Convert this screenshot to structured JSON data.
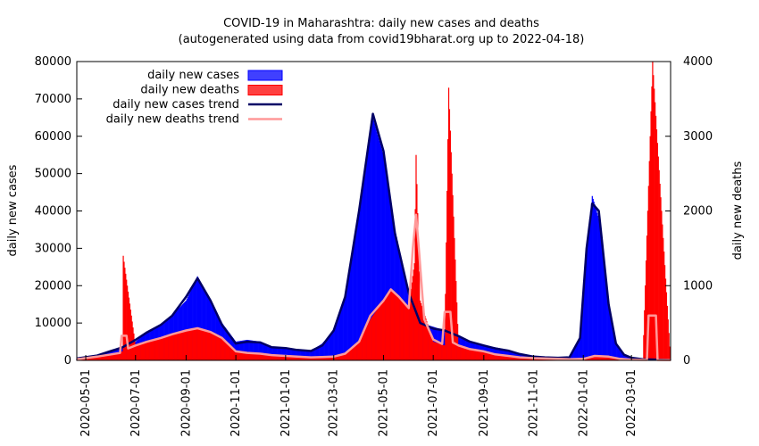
{
  "chart_data": {
    "type": "bar",
    "title": "COVID-19 in Maharashtra: daily new cases and deaths",
    "subtitle": "(autogenerated using data from covid19bharat.org up to 2022-04-18)",
    "ylabel": "daily new cases",
    "y2label": "daily new deaths",
    "xlim": [
      "2020-04-20",
      "2022-04-18"
    ],
    "ylim": [
      0,
      80000
    ],
    "y2lim": [
      0,
      4000
    ],
    "x_ticks": [
      "2020-05-01",
      "2020-07-01",
      "2020-09-01",
      "2020-11-01",
      "2021-01-01",
      "2021-03-01",
      "2021-05-01",
      "2021-07-01",
      "2021-09-01",
      "2021-11-01",
      "2022-01-01",
      "2022-03-01"
    ],
    "y_ticks": [
      0,
      10000,
      20000,
      30000,
      40000,
      50000,
      60000,
      70000,
      80000
    ],
    "y2_ticks": [
      0,
      1000,
      2000,
      3000,
      4000
    ],
    "legend_position": "top-left",
    "legend": [
      {
        "label": "daily new cases",
        "kind": "box",
        "color": "#0000ff"
      },
      {
        "label": "daily new deaths",
        "kind": "box",
        "color": "#ff0000"
      },
      {
        "label": "daily new cases trend",
        "kind": "line",
        "color": "#000066"
      },
      {
        "label": "daily new deaths trend",
        "kind": "line",
        "color": "#ff9999"
      }
    ],
    "series": [
      {
        "name": "daily new cases",
        "axis": "left",
        "color": "#0000ff",
        "points": [
          [
            "2020-04-20",
            400
          ],
          [
            "2020-05-15",
            1200
          ],
          [
            "2020-06-01",
            2500
          ],
          [
            "2020-06-15",
            3200
          ],
          [
            "2020-07-01",
            5000
          ],
          [
            "2020-07-15",
            7500
          ],
          [
            "2020-08-01",
            9500
          ],
          [
            "2020-08-15",
            12000
          ],
          [
            "2020-09-01",
            16000
          ],
          [
            "2020-09-15",
            22500
          ],
          [
            "2020-10-01",
            16000
          ],
          [
            "2020-10-15",
            10000
          ],
          [
            "2020-11-01",
            5000
          ],
          [
            "2020-11-15",
            5500
          ],
          [
            "2020-12-01",
            5000
          ],
          [
            "2020-12-15",
            3500
          ],
          [
            "2021-01-01",
            3500
          ],
          [
            "2021-01-15",
            2800
          ],
          [
            "2021-02-01",
            2500
          ],
          [
            "2021-02-15",
            4500
          ],
          [
            "2021-03-01",
            8000
          ],
          [
            "2021-03-15",
            17000
          ],
          [
            "2021-04-01",
            40000
          ],
          [
            "2021-04-18",
            65000
          ],
          [
            "2021-05-01",
            55000
          ],
          [
            "2021-05-15",
            35000
          ],
          [
            "2021-06-01",
            18000
          ],
          [
            "2021-06-15",
            10000
          ],
          [
            "2021-07-01",
            9000
          ],
          [
            "2021-07-15",
            8000
          ],
          [
            "2021-08-01",
            6500
          ],
          [
            "2021-08-15",
            5000
          ],
          [
            "2021-09-01",
            4000
          ],
          [
            "2021-09-15",
            3500
          ],
          [
            "2021-10-01",
            2800
          ],
          [
            "2021-10-15",
            1800
          ],
          [
            "2021-11-01",
            1100
          ],
          [
            "2021-11-15",
            800
          ],
          [
            "2021-12-01",
            700
          ],
          [
            "2021-12-15",
            800
          ],
          [
            "2021-12-28",
            6000
          ],
          [
            "2022-01-05",
            30000
          ],
          [
            "2022-01-12",
            44000
          ],
          [
            "2022-01-20",
            38000
          ],
          [
            "2022-02-01",
            15000
          ],
          [
            "2022-02-10",
            4500
          ],
          [
            "2022-02-20",
            1500
          ],
          [
            "2022-03-01",
            700
          ],
          [
            "2022-03-15",
            300
          ],
          [
            "2022-04-18",
            100
          ]
        ]
      },
      {
        "name": "daily new deaths",
        "axis": "right",
        "color": "#ff0000",
        "points": [
          [
            "2020-04-20",
            10
          ],
          [
            "2020-05-15",
            50
          ],
          [
            "2020-06-01",
            80
          ],
          [
            "2020-06-15",
            120
          ],
          [
            "2020-06-16",
            1400
          ],
          [
            "2020-07-01",
            200
          ],
          [
            "2020-07-15",
            250
          ],
          [
            "2020-08-01",
            300
          ],
          [
            "2020-08-15",
            350
          ],
          [
            "2020-09-01",
            400
          ],
          [
            "2020-09-15",
            440
          ],
          [
            "2020-10-01",
            380
          ],
          [
            "2020-10-15",
            300
          ],
          [
            "2020-11-01",
            130
          ],
          [
            "2020-11-15",
            100
          ],
          [
            "2020-12-01",
            90
          ],
          [
            "2020-12-15",
            70
          ],
          [
            "2021-01-01",
            60
          ],
          [
            "2021-01-15",
            50
          ],
          [
            "2021-02-01",
            40
          ],
          [
            "2021-02-15",
            45
          ],
          [
            "2021-03-01",
            50
          ],
          [
            "2021-03-15",
            90
          ],
          [
            "2021-04-01",
            250
          ],
          [
            "2021-04-15",
            550
          ],
          [
            "2021-05-01",
            800
          ],
          [
            "2021-05-10",
            950
          ],
          [
            "2021-05-20",
            850
          ],
          [
            "2021-06-01",
            700
          ],
          [
            "2021-06-08",
            1300
          ],
          [
            "2021-06-10",
            2750
          ],
          [
            "2021-06-15",
            800
          ],
          [
            "2021-07-01",
            250
          ],
          [
            "2021-07-15",
            200
          ],
          [
            "2021-07-20",
            3650
          ],
          [
            "2021-08-01",
            200
          ],
          [
            "2021-08-15",
            150
          ],
          [
            "2021-09-01",
            120
          ],
          [
            "2021-09-15",
            80
          ],
          [
            "2021-10-01",
            60
          ],
          [
            "2021-10-15",
            40
          ],
          [
            "2021-11-01",
            30
          ],
          [
            "2021-11-15",
            25
          ],
          [
            "2021-12-01",
            20
          ],
          [
            "2021-12-15",
            15
          ],
          [
            "2022-01-01",
            20
          ],
          [
            "2022-01-15",
            60
          ],
          [
            "2022-02-01",
            50
          ],
          [
            "2022-02-15",
            20
          ],
          [
            "2022-03-01",
            10
          ],
          [
            "2022-03-15",
            5
          ],
          [
            "2022-03-27",
            4000
          ],
          [
            "2022-04-18",
            3
          ]
        ]
      },
      {
        "name": "daily new cases trend",
        "axis": "left",
        "color": "#000066",
        "points": [
          [
            "2020-04-20",
            500
          ],
          [
            "2020-05-15",
            1300
          ],
          [
            "2020-06-01",
            2500
          ],
          [
            "2020-06-15",
            3500
          ],
          [
            "2020-07-01",
            5500
          ],
          [
            "2020-07-15",
            7500
          ],
          [
            "2020-08-01",
            9500
          ],
          [
            "2020-08-15",
            12000
          ],
          [
            "2020-09-01",
            17000
          ],
          [
            "2020-09-15",
            22000
          ],
          [
            "2020-10-01",
            16000
          ],
          [
            "2020-10-15",
            9500
          ],
          [
            "2020-11-01",
            4500
          ],
          [
            "2020-11-15",
            5000
          ],
          [
            "2020-12-01",
            4800
          ],
          [
            "2020-12-15",
            3500
          ],
          [
            "2021-01-01",
            3300
          ],
          [
            "2021-01-15",
            2800
          ],
          [
            "2021-02-01",
            2500
          ],
          [
            "2021-02-15",
            4000
          ],
          [
            "2021-03-01",
            8000
          ],
          [
            "2021-03-15",
            17000
          ],
          [
            "2021-04-01",
            40000
          ],
          [
            "2021-04-18",
            66000
          ],
          [
            "2021-05-01",
            56000
          ],
          [
            "2021-05-15",
            34000
          ],
          [
            "2021-06-01",
            18000
          ],
          [
            "2021-06-15",
            10000
          ],
          [
            "2021-07-01",
            8500
          ],
          [
            "2021-07-15",
            8000
          ],
          [
            "2021-08-01",
            6500
          ],
          [
            "2021-08-15",
            5000
          ],
          [
            "2021-09-01",
            4000
          ],
          [
            "2021-09-15",
            3200
          ],
          [
            "2021-10-01",
            2600
          ],
          [
            "2021-10-15",
            1700
          ],
          [
            "2021-11-01",
            1000
          ],
          [
            "2021-11-15",
            800
          ],
          [
            "2021-12-01",
            700
          ],
          [
            "2021-12-15",
            800
          ],
          [
            "2021-12-28",
            6000
          ],
          [
            "2022-01-05",
            30000
          ],
          [
            "2022-01-12",
            42000
          ],
          [
            "2022-01-20",
            40000
          ],
          [
            "2022-02-01",
            15000
          ],
          [
            "2022-02-10",
            4500
          ],
          [
            "2022-02-20",
            1500
          ],
          [
            "2022-03-01",
            700
          ],
          [
            "2022-03-15",
            300
          ],
          [
            "2022-04-18",
            100
          ]
        ]
      },
      {
        "name": "daily new deaths trend",
        "axis": "right",
        "color": "#ff9999",
        "points": [
          [
            "2020-04-20",
            15
          ],
          [
            "2020-05-15",
            50
          ],
          [
            "2020-06-01",
            80
          ],
          [
            "2020-06-12",
            100
          ],
          [
            "2020-06-14",
            330
          ],
          [
            "2020-06-20",
            330
          ],
          [
            "2020-06-22",
            160
          ],
          [
            "2020-07-01",
            200
          ],
          [
            "2020-07-15",
            250
          ],
          [
            "2020-08-01",
            300
          ],
          [
            "2020-08-15",
            350
          ],
          [
            "2020-09-01",
            400
          ],
          [
            "2020-09-15",
            430
          ],
          [
            "2020-10-01",
            380
          ],
          [
            "2020-10-15",
            300
          ],
          [
            "2020-11-01",
            120
          ],
          [
            "2020-11-15",
            100
          ],
          [
            "2020-12-01",
            90
          ],
          [
            "2020-12-15",
            70
          ],
          [
            "2021-01-01",
            60
          ],
          [
            "2021-01-15",
            50
          ],
          [
            "2021-02-01",
            40
          ],
          [
            "2021-02-15",
            45
          ],
          [
            "2021-03-01",
            50
          ],
          [
            "2021-03-15",
            90
          ],
          [
            "2021-04-01",
            250
          ],
          [
            "2021-04-15",
            600
          ],
          [
            "2021-05-01",
            800
          ],
          [
            "2021-05-10",
            950
          ],
          [
            "2021-05-20",
            850
          ],
          [
            "2021-06-01",
            700
          ],
          [
            "2021-06-06",
            1500
          ],
          [
            "2021-06-10",
            1950
          ],
          [
            "2021-06-14",
            1400
          ],
          [
            "2021-06-20",
            550
          ],
          [
            "2021-07-01",
            280
          ],
          [
            "2021-07-12",
            220
          ],
          [
            "2021-07-15",
            650
          ],
          [
            "2021-07-22",
            650
          ],
          [
            "2021-07-25",
            240
          ],
          [
            "2021-08-01",
            200
          ],
          [
            "2021-08-15",
            150
          ],
          [
            "2021-09-01",
            120
          ],
          [
            "2021-09-15",
            80
          ],
          [
            "2021-10-01",
            60
          ],
          [
            "2021-10-15",
            40
          ],
          [
            "2021-11-01",
            30
          ],
          [
            "2021-11-15",
            25
          ],
          [
            "2021-12-01",
            20
          ],
          [
            "2021-12-15",
            15
          ],
          [
            "2022-01-01",
            20
          ],
          [
            "2022-01-15",
            60
          ],
          [
            "2022-02-01",
            50
          ],
          [
            "2022-02-15",
            20
          ],
          [
            "2022-03-01",
            10
          ],
          [
            "2022-03-20",
            6
          ],
          [
            "2022-03-22",
            600
          ],
          [
            "2022-03-31",
            600
          ],
          [
            "2022-04-02",
            5
          ],
          [
            "2022-04-18",
            3
          ]
        ]
      }
    ]
  }
}
